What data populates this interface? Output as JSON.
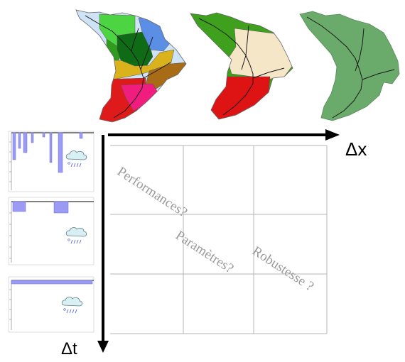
{
  "axes": {
    "x_label": "Δx",
    "t_label": "Δt"
  },
  "annotations": {
    "performances": "Performances?",
    "parametres": "Paramètres?",
    "robustesse": "Robustesse ?"
  },
  "colors": {
    "map1": [
      "#cfe3f7",
      "#4cd443",
      "#2f9c1e",
      "#0f6b16",
      "#5b8fe6",
      "#d9b21c",
      "#a86b16",
      "#de1a1a",
      "#f01d7e"
    ],
    "map2": [
      "#3fa01d",
      "#f6e6c8",
      "#de1414"
    ],
    "map3": "#6aaa6a",
    "hyeto": "#9b9bf3",
    "grid": "#b4b4b4",
    "axis": "#000000"
  },
  "icons": {
    "cloud": "rain-cloud-icon"
  }
}
